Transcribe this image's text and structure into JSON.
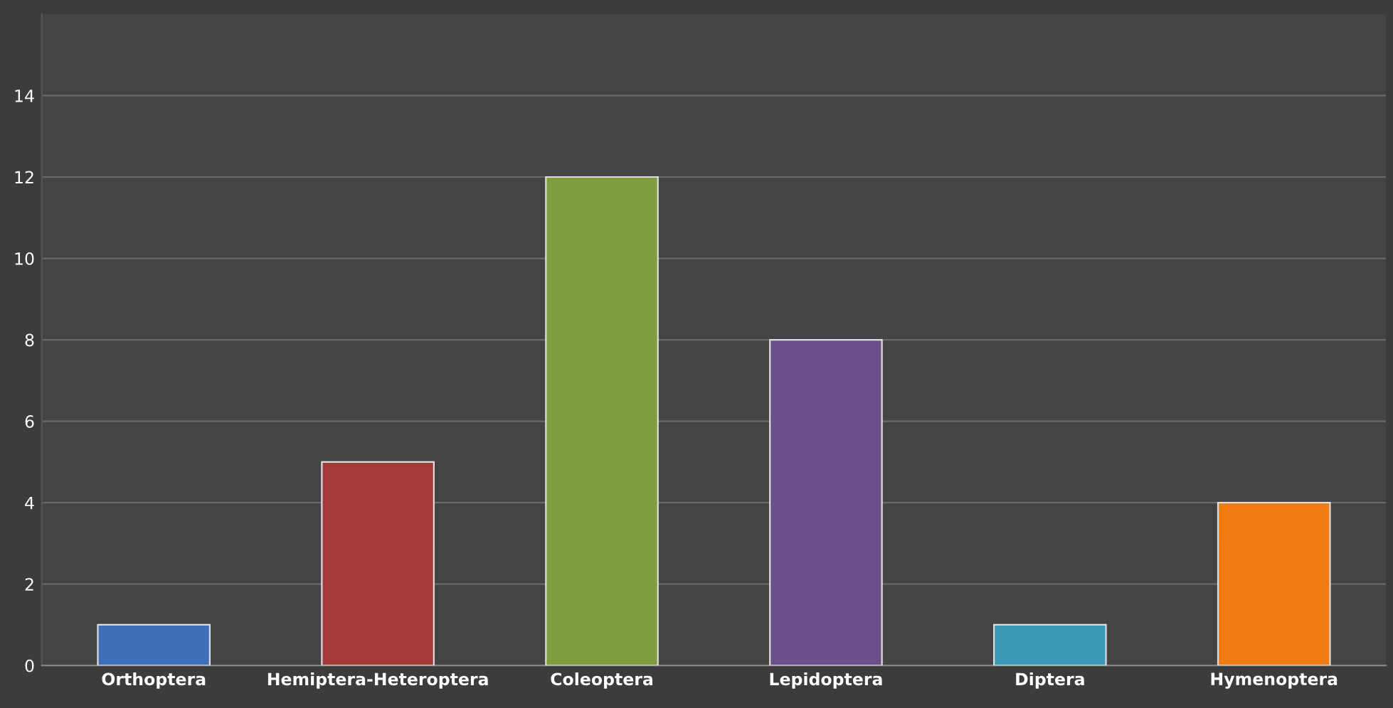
{
  "chart_data": {
    "type": "bar",
    "categories": [
      "Orthoptera",
      "Hemiptera-Heteroptera",
      "Coleoptera",
      "Lepidoptera",
      "Diptera",
      "Hymenoptera"
    ],
    "values": [
      1,
      5,
      12,
      8,
      1,
      4
    ],
    "colors": [
      "#3f6fb5",
      "#a33a3a",
      "#7e9d3f",
      "#6b4f8a",
      "#3a9ab8",
      "#f07b13"
    ],
    "ylim": [
      0,
      16
    ],
    "yticks": [
      0,
      2,
      4,
      6,
      8,
      10,
      12,
      14
    ],
    "grid": "y"
  }
}
